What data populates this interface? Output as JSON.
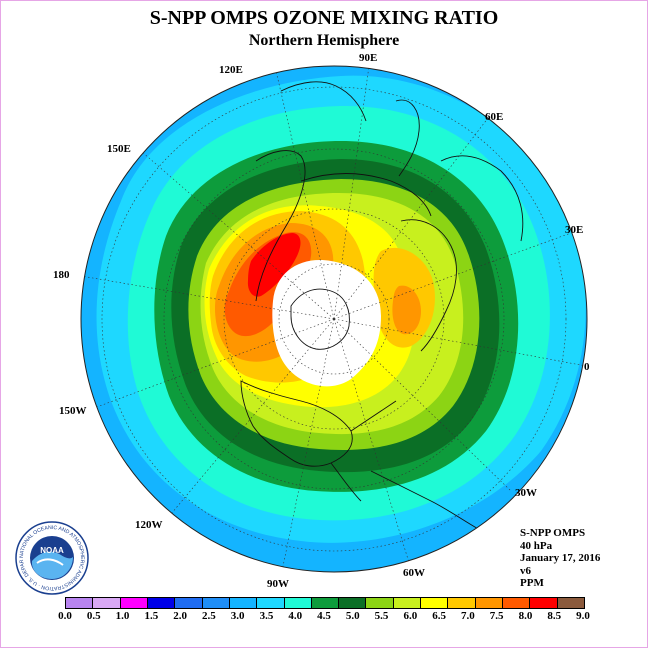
{
  "title": "S-NPP OMPS OZONE MIXING RATIO",
  "subtitle": "Northern Hemisphere",
  "longitude_labels": {
    "e120": "120E",
    "e90": "90E",
    "e60": "60E",
    "e150": "150E",
    "e30": "30E",
    "d180": "180",
    "d0": "0",
    "w150": "150W",
    "w30": "30W",
    "w120": "120W",
    "w60": "60W",
    "w90": "90W"
  },
  "info": {
    "instrument": "S-NPP OMPS",
    "level": "40 hPa",
    "date": "January 17, 2016",
    "version": "v6",
    "units": "PPM"
  },
  "logo": {
    "text": "NOAA",
    "ring_text": "NATIONAL OCEANIC AND ATMOSPHERIC ADMINISTRATION · U.S. DEPARTMENT OF COMMERCE"
  },
  "colorbar": {
    "colors": [
      "#b884f0",
      "#d9a8f5",
      "#ff00ff",
      "#0000e8",
      "#1f6cf2",
      "#1f8ef7",
      "#14b4ff",
      "#1ed8ff",
      "#1ffad6",
      "#0d9c3c",
      "#0b6f26",
      "#8cd414",
      "#c8f01e",
      "#ffff00",
      "#ffc800",
      "#ff9600",
      "#ff5a00",
      "#ff0000",
      "#8b5a3c"
    ],
    "ticks": [
      "0.0",
      "0.5",
      "1.0",
      "1.5",
      "2.0",
      "2.5",
      "3.0",
      "3.5",
      "4.0",
      "4.5",
      "5.0",
      "5.5",
      "6.0",
      "6.5",
      "7.0",
      "7.5",
      "8.0",
      "8.5",
      "9.0"
    ]
  },
  "map_colors": {
    "ring_3_0": "#14b4ff",
    "ring_3_5": "#1ed8ff",
    "ring_4_0": "#1ffad6",
    "ring_4_5": "#0d9c3c",
    "ring_5_0": "#0b6f26",
    "ring_5_5": "#8cd414",
    "ring_6_0": "#c8f01e",
    "ring_6_5": "#ffff00",
    "ring_7_0": "#ffc800",
    "ring_7_5": "#ff9600",
    "ring_8_0": "#ff5a00",
    "ring_8_5": "#ff0000",
    "no_data": "#ffffff"
  }
}
